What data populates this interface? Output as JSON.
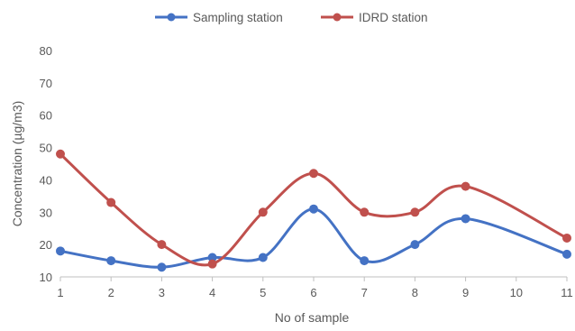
{
  "chart_data": {
    "type": "line",
    "smooth": true,
    "title": "",
    "xlabel": "No of sample",
    "ylabel": "Concentration (µg/m3)",
    "x": [
      1,
      2,
      3,
      4,
      5,
      6,
      7,
      8,
      9,
      10,
      11
    ],
    "x_tick_labels": [
      "1",
      "2",
      "3",
      "4",
      "5",
      "6",
      "7",
      "8",
      "9",
      "10",
      "11"
    ],
    "ylim": [
      10,
      80
    ],
    "y_ticks": [
      10,
      20,
      30,
      40,
      50,
      60,
      70,
      80
    ],
    "y_tick_labels": [
      "10",
      "20",
      "30",
      "40",
      "50",
      "60",
      "70",
      "80"
    ],
    "grid": false,
    "legend_position": "top-center",
    "series": [
      {
        "name": "Sampling station",
        "color": "#4472C4",
        "marker": "circle",
        "points": [
          [
            1,
            18
          ],
          [
            2,
            15
          ],
          [
            3,
            13
          ],
          [
            4,
            16
          ],
          [
            5,
            16
          ],
          [
            6,
            31
          ],
          [
            7,
            15
          ],
          [
            8,
            20
          ],
          [
            9,
            28
          ],
          [
            11,
            17
          ]
        ]
      },
      {
        "name": "IDRD station",
        "color": "#C0504D",
        "marker": "circle",
        "points": [
          [
            1,
            48
          ],
          [
            2,
            33
          ],
          [
            3,
            20
          ],
          [
            4,
            14
          ],
          [
            5,
            30
          ],
          [
            6,
            42
          ],
          [
            7,
            30
          ],
          [
            8,
            30
          ],
          [
            9,
            38
          ],
          [
            11,
            22
          ]
        ]
      }
    ]
  }
}
